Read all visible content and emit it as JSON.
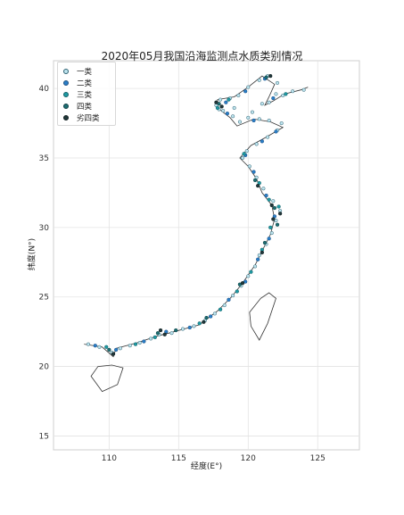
{
  "chart_data": {
    "type": "scatter",
    "title": "2020年05月我国沿海监测点水质类别情况",
    "xlabel": "经度(E°)",
    "ylabel": "纬度(N°)",
    "xlim": [
      106,
      128
    ],
    "ylim": [
      14,
      42
    ],
    "xticks": [
      "110",
      "115",
      "120",
      "125"
    ],
    "yticks": [
      "15",
      "20",
      "25",
      "30",
      "35",
      "40"
    ],
    "grid": true,
    "legend_position": "top-left",
    "series": [
      {
        "name": "一类",
        "color": "#bfe5ef",
        "stroke": "#2b5f70",
        "points": [
          [
            108.5,
            21.6
          ],
          [
            109.3,
            21.4
          ],
          [
            110.2,
            21.0
          ],
          [
            110.8,
            21.3
          ],
          [
            111.5,
            21.5
          ],
          [
            112.2,
            21.7
          ],
          [
            113.0,
            22.0
          ],
          [
            113.6,
            22.3
          ],
          [
            114.5,
            22.4
          ],
          [
            115.3,
            22.7
          ],
          [
            116.1,
            22.9
          ],
          [
            116.9,
            23.3
          ],
          [
            117.6,
            23.8
          ],
          [
            118.3,
            24.4
          ],
          [
            118.9,
            25.1
          ],
          [
            119.5,
            25.8
          ],
          [
            120.0,
            26.5
          ],
          [
            120.5,
            27.2
          ],
          [
            120.8,
            28.0
          ],
          [
            121.3,
            28.8
          ],
          [
            121.7,
            29.6
          ],
          [
            122.0,
            30.5
          ],
          [
            122.3,
            31.2
          ],
          [
            121.8,
            31.9
          ],
          [
            121.1,
            32.8
          ],
          [
            120.6,
            33.6
          ],
          [
            120.1,
            34.4
          ],
          [
            119.6,
            35.0
          ],
          [
            119.9,
            35.5
          ],
          [
            120.6,
            36.0
          ],
          [
            121.4,
            36.5
          ],
          [
            122.1,
            37.0
          ],
          [
            122.4,
            37.5
          ],
          [
            121.5,
            37.7
          ],
          [
            120.8,
            37.8
          ],
          [
            120.0,
            37.9
          ],
          [
            119.4,
            37.6
          ],
          [
            118.9,
            38.0
          ],
          [
            118.2,
            38.4
          ],
          [
            117.7,
            38.8
          ],
          [
            118.0,
            39.2
          ],
          [
            118.7,
            39.3
          ],
          [
            119.3,
            39.5
          ],
          [
            120.0,
            40.1
          ],
          [
            120.8,
            40.6
          ],
          [
            121.4,
            40.9
          ],
          [
            122.1,
            40.4
          ],
          [
            122.0,
            39.6
          ],
          [
            121.5,
            39.0
          ],
          [
            121.0,
            38.9
          ],
          [
            122.5,
            39.5
          ],
          [
            123.2,
            39.8
          ],
          [
            124.0,
            39.9
          ],
          [
            117.9,
            38.5
          ],
          [
            119.0,
            38.6
          ],
          [
            120.3,
            38.3
          ]
        ]
      },
      {
        "name": "二类",
        "color": "#2a7fc8",
        "stroke": "#1c4e80",
        "points": [
          [
            109.0,
            21.5
          ],
          [
            110.5,
            21.2
          ],
          [
            112.5,
            21.8
          ],
          [
            114.1,
            22.5
          ],
          [
            115.8,
            22.8
          ],
          [
            117.3,
            23.6
          ],
          [
            118.6,
            24.8
          ],
          [
            119.8,
            26.1
          ],
          [
            120.7,
            27.7
          ],
          [
            121.5,
            29.2
          ],
          [
            121.9,
            30.8
          ],
          [
            121.3,
            32.3
          ],
          [
            120.4,
            34.0
          ],
          [
            119.8,
            35.2
          ],
          [
            121.0,
            36.2
          ],
          [
            122.0,
            36.9
          ],
          [
            120.4,
            37.7
          ],
          [
            118.5,
            38.2
          ],
          [
            118.4,
            39.0
          ],
          [
            119.8,
            39.8
          ],
          [
            121.2,
            40.7
          ],
          [
            121.8,
            39.3
          ]
        ]
      },
      {
        "name": "三类",
        "color": "#1f9aa3",
        "stroke": "#125f66",
        "points": [
          [
            109.8,
            21.4
          ],
          [
            111.9,
            21.6
          ],
          [
            113.3,
            22.1
          ],
          [
            116.5,
            23.1
          ],
          [
            118.0,
            24.1
          ],
          [
            119.2,
            25.4
          ],
          [
            120.2,
            26.8
          ],
          [
            121.0,
            28.4
          ],
          [
            121.6,
            30.0
          ],
          [
            122.2,
            31.5
          ],
          [
            121.5,
            32.0
          ],
          [
            120.8,
            33.2
          ],
          [
            119.7,
            35.3
          ],
          [
            117.8,
            38.6
          ],
          [
            122.7,
            39.6
          ],
          [
            118.6,
            39.2
          ]
        ]
      },
      {
        "name": "四类",
        "color": "#1d6e73",
        "stroke": "#0f3e42",
        "points": [
          [
            110.0,
            21.2
          ],
          [
            113.5,
            22.4
          ],
          [
            114.8,
            22.6
          ],
          [
            117.0,
            23.5
          ],
          [
            119.4,
            25.9
          ],
          [
            121.2,
            28.9
          ],
          [
            122.1,
            30.2
          ],
          [
            121.9,
            31.4
          ],
          [
            120.5,
            33.4
          ],
          [
            117.9,
            38.9
          ],
          [
            121.3,
            40.8
          ]
        ]
      },
      {
        "name": "劣四类",
        "color": "#20383b",
        "stroke": "#101c1e",
        "points": [
          [
            110.3,
            20.9
          ],
          [
            113.7,
            22.6
          ],
          [
            114.0,
            22.3
          ],
          [
            116.8,
            23.2
          ],
          [
            119.6,
            26.0
          ],
          [
            121.0,
            28.2
          ],
          [
            121.8,
            30.6
          ],
          [
            122.3,
            31.0
          ],
          [
            121.7,
            31.6
          ],
          [
            120.7,
            33.0
          ],
          [
            118.1,
            38.7
          ],
          [
            121.6,
            40.9
          ],
          [
            117.7,
            39.0
          ]
        ]
      }
    ]
  }
}
